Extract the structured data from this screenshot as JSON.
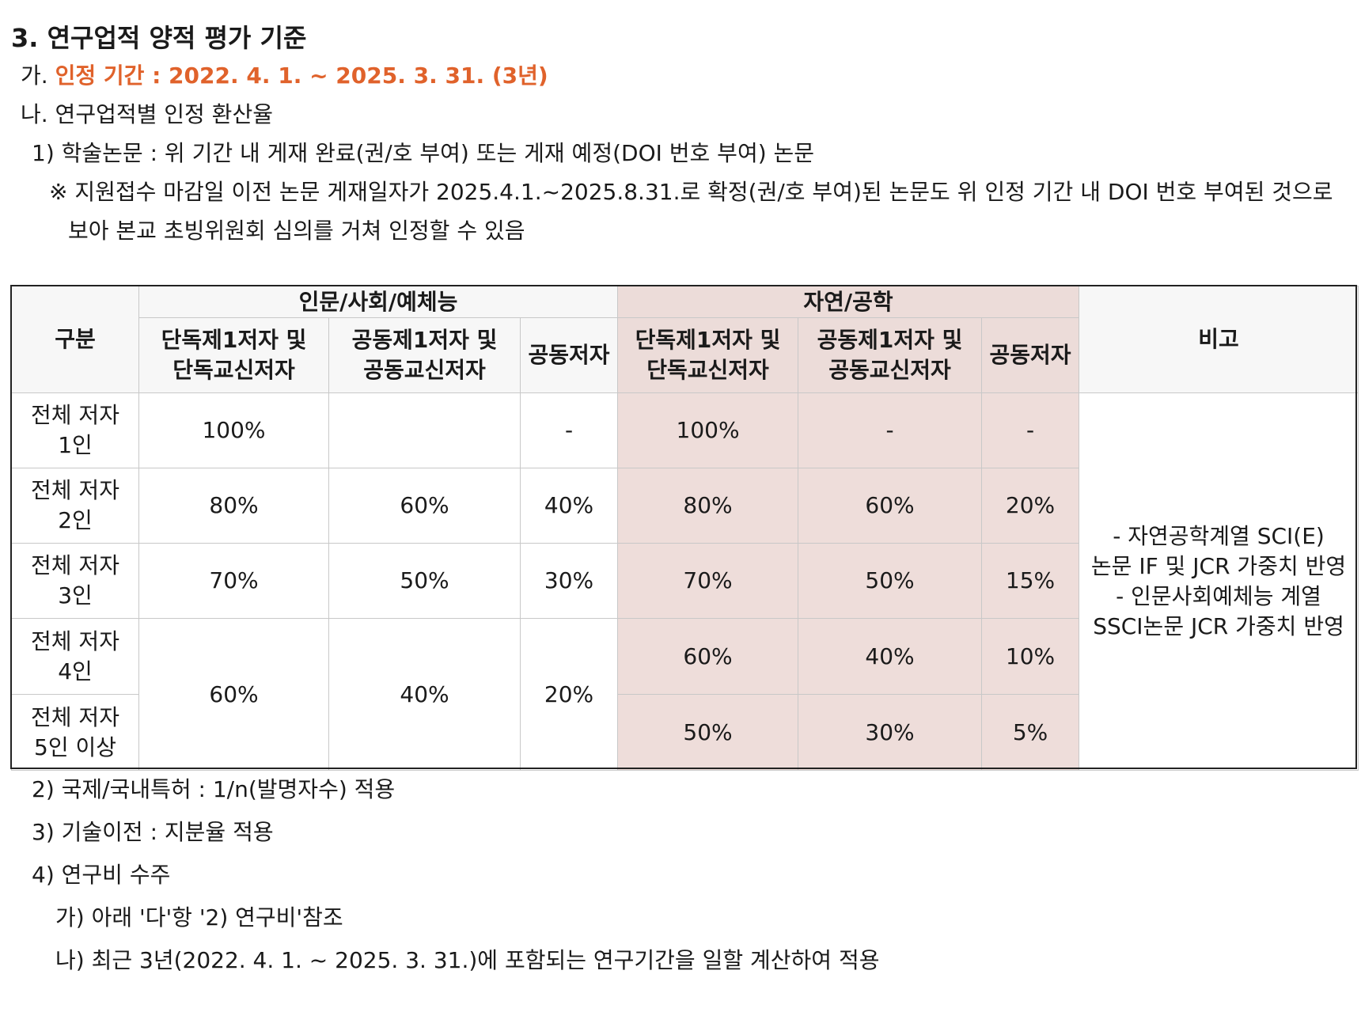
{
  "heading": "3. 연구업적 양적 평가 기준",
  "period": {
    "prefix": "가. ",
    "text": "인정 기간 : 2022. 4. 1. ~ 2025. 3. 31. (3년)"
  },
  "conversion_title": "나. 연구업적별 인정 환산율",
  "item1": "1) 학술논문 : 위 기간 내 게재 완료(권/호 부여) 또는 게재 예정(DOI 번호 부여) 논문",
  "note_line1": "※ 지원접수 마감일 이전 논문 게재일자가 2025.4.1.~2025.8.31.로 확정(권/호 부여)된 논문도 위 인정 기간 내 DOI 번호 부여된 것으로",
  "note_line2": "보아 본교 초빙위원회 심의를 거쳐 인정할 수 있음",
  "table": {
    "category_header": "구분",
    "group_humanities": "인문/사회/예체능",
    "group_science": "자연/공학",
    "remarks_header": "비고",
    "sub_headers": {
      "sole_first_1": "단독제1저자 및",
      "sole_first_2": "단독교신저자",
      "joint_first_1": "공동제1저자 및",
      "joint_first_2": "공동교신저자",
      "coauthor": "공동저자"
    },
    "rows": [
      {
        "label1": "전체 저자",
        "label2": "1인",
        "h_sole": "100%",
        "h_joint": "",
        "h_co": "-",
        "s_sole": "100%",
        "s_joint": "-",
        "s_co": "-"
      },
      {
        "label1": "전체 저자",
        "label2": "2인",
        "h_sole": "80%",
        "h_joint": "60%",
        "h_co": "40%",
        "s_sole": "80%",
        "s_joint": "60%",
        "s_co": "20%"
      },
      {
        "label1": "전체 저자",
        "label2": "3인",
        "h_sole": "70%",
        "h_joint": "50%",
        "h_co": "30%",
        "s_sole": "70%",
        "s_joint": "50%",
        "s_co": "15%"
      },
      {
        "label1": "전체 저자",
        "label2": "4인",
        "h_sole": "60%",
        "h_joint": "40%",
        "h_co": "20%",
        "s_sole": "60%",
        "s_joint": "40%",
        "s_co": "10%"
      },
      {
        "label1": "전체 저자",
        "label2": "5인 이상",
        "s_sole": "50%",
        "s_joint": "30%",
        "s_co": "5%"
      }
    ],
    "remarks": [
      "- 자연공학계열 SCI(E)",
      "논문 IF 및 JCR  가중치 반영",
      "- 인문사회예체능 계열",
      "SSCI논문 JCR 가중치 반영"
    ]
  },
  "item2": "2) 국제/국내특허 : 1/n(발명자수) 적용",
  "item3": "3) 기술이전 : 지분율 적용",
  "item4": "4) 연구비 수주",
  "item4a": "가) 아래 '다'항 '2) 연구비'참조",
  "item4b": "나) 최근 3년(2022. 4. 1. ~ 2025. 3. 31.)에 포함되는 연구기간을 일할 계산하여 적용",
  "colors": {
    "accent": "#e0622b",
    "science_bg": "#eeddda"
  }
}
